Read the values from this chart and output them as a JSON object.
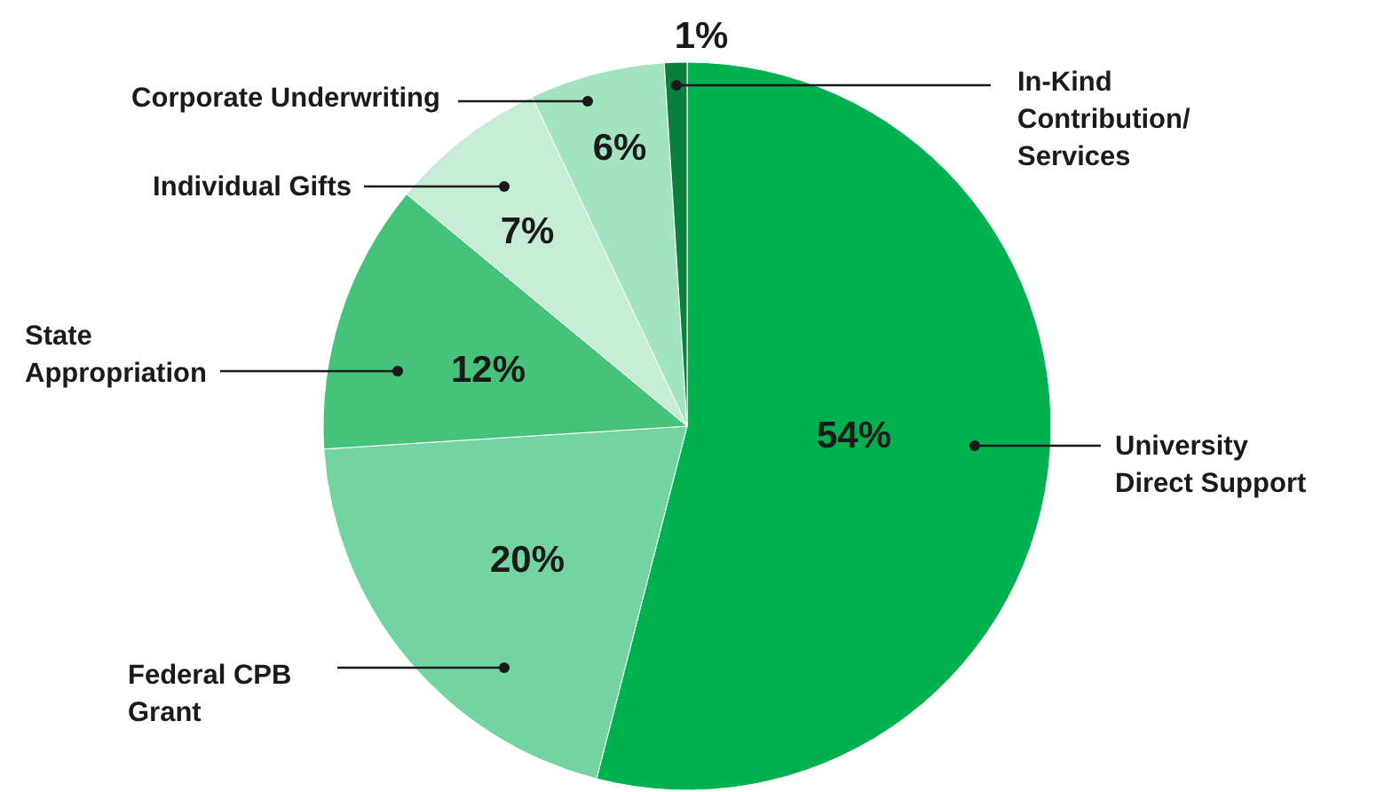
{
  "chart_data": {
    "type": "pie",
    "categories": [
      "University\nDirect Support",
      "Federal CPB\nGrant",
      "State\nAppropriation",
      "Individual Gifts",
      "Corporate Underwriting",
      "In-Kind\nContribution/\nServices"
    ],
    "values": [
      54,
      20,
      12,
      7,
      6,
      1
    ],
    "value_labels": [
      "54%",
      "20%",
      "12%",
      "7%",
      "6%",
      "1%"
    ],
    "colors": [
      "#00b14f",
      "#74d4a0",
      "#46c37b",
      "#c6ecd6",
      "#a3e4c0",
      "#0b7f3e"
    ],
    "legend": false
  }
}
